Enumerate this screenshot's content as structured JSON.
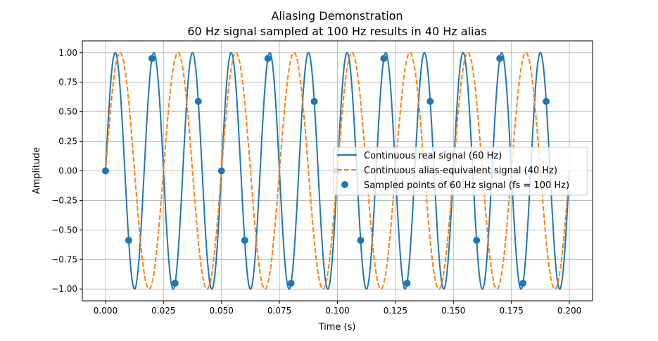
{
  "chart_data": {
    "type": "line",
    "title": "Aliasing Demonstration",
    "subtitle": "60 Hz signal sampled at 100 Hz results in 40 Hz alias",
    "xlabel": "Time (s)",
    "ylabel": "Amplitude",
    "xlim": [
      -0.01,
      0.21
    ],
    "ylim": [
      -1.1,
      1.1
    ],
    "grid": true,
    "legend_placement": "center-right",
    "x_ticks": [
      "0.000",
      "0.025",
      "0.050",
      "0.075",
      "0.100",
      "0.125",
      "0.150",
      "0.175",
      "0.200"
    ],
    "y_ticks": [
      "−1.00",
      "−0.75",
      "−0.50",
      "−0.25",
      "0.00",
      "0.25",
      "0.50",
      "0.75",
      "1.00"
    ],
    "series": [
      {
        "name": "Continuous real signal (60 Hz)",
        "kind": "line",
        "style": "solid",
        "color": "#1f77b4",
        "function": "sin",
        "frequency_hz": 60,
        "amplitude": 1,
        "t_range": [
          0,
          0.2
        ]
      },
      {
        "name": "Continuous alias-equivalent signal (40 Hz)",
        "kind": "line",
        "style": "dashed",
        "color": "#ff7f0e",
        "function": "sin",
        "frequency_hz": 40,
        "amplitude": 1,
        "t_range": [
          0,
          0.2
        ]
      },
      {
        "name": "Sampled points of 60 Hz signal (fs = 100 Hz)",
        "kind": "scatter",
        "color": "#1f77b4",
        "x": [
          0.0,
          0.01,
          0.02,
          0.03,
          0.04,
          0.05,
          0.06,
          0.07,
          0.08,
          0.09,
          0.1,
          0.11,
          0.12,
          0.13,
          0.14,
          0.15,
          0.16,
          0.17,
          0.18,
          0.19
        ],
        "y": [
          0,
          -0.588,
          0.951,
          -0.951,
          0.588,
          0,
          -0.588,
          0.951,
          -0.951,
          0.588,
          0,
          -0.588,
          0.951,
          -0.951,
          0.588,
          0,
          -0.588,
          0.951,
          -0.951,
          0.588
        ]
      }
    ]
  }
}
